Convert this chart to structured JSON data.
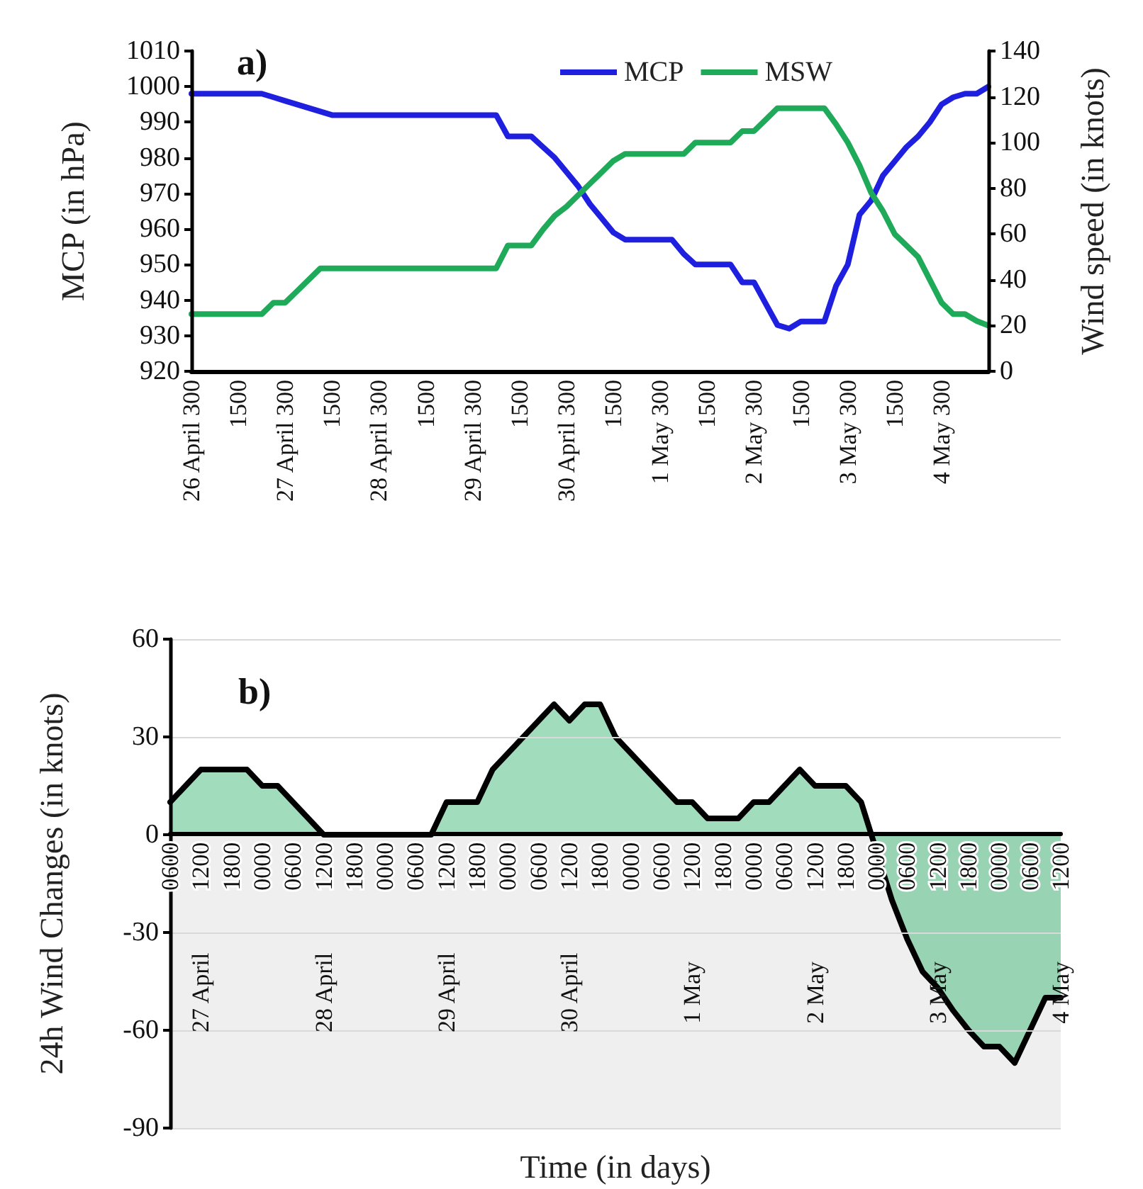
{
  "chart_data": [
    {
      "type": "line",
      "title": "a)",
      "ylabel": "MCP (in hPa)",
      "y2label": "Wind speed (in knots)",
      "categories": [
        "26 April 300",
        null,
        null,
        null,
        "1500",
        null,
        null,
        null,
        "27 April 300",
        null,
        null,
        null,
        "1500",
        null,
        null,
        null,
        "28 April 300",
        null,
        null,
        null,
        "1500",
        null,
        null,
        null,
        "29 April 300",
        null,
        null,
        null,
        "1500",
        null,
        null,
        null,
        "30 April 300",
        null,
        null,
        null,
        "1500",
        null,
        null,
        null,
        "1 May 300",
        null,
        null,
        null,
        "1500",
        null,
        null,
        null,
        "2 May 300",
        null,
        null,
        null,
        "1500",
        null,
        null,
        null,
        "3 May 300",
        null,
        null,
        null,
        "1500",
        null,
        null,
        null,
        "4 May 300",
        null,
        null,
        null,
        null
      ],
      "series": [
        {
          "name": "MCP",
          "color": "#1f1fe0",
          "values": [
            998,
            998,
            998,
            998,
            998,
            998,
            998,
            997,
            996,
            995,
            994,
            993,
            992,
            992,
            992,
            992,
            992,
            992,
            992,
            992,
            992,
            992,
            992,
            992,
            992,
            992,
            992,
            986,
            986,
            986,
            983,
            980,
            976,
            972,
            967,
            963,
            959,
            957,
            957,
            957,
            957,
            957,
            953,
            950,
            950,
            950,
            950,
            945,
            945,
            939,
            933,
            932,
            934,
            934,
            934,
            944,
            950,
            964,
            968,
            975,
            979,
            983,
            986,
            990,
            995,
            997,
            998,
            998,
            1000
          ]
        },
        {
          "name": "MSW",
          "color": "#1faa59",
          "axis": "y2",
          "values": [
            25,
            25,
            25,
            25,
            25,
            25,
            25,
            30,
            30,
            35,
            40,
            45,
            45,
            45,
            45,
            45,
            45,
            45,
            45,
            45,
            45,
            45,
            45,
            45,
            45,
            45,
            45,
            55,
            55,
            55,
            62,
            68,
            72,
            77,
            82,
            87,
            92,
            95,
            95,
            95,
            95,
            95,
            95,
            100,
            100,
            100,
            100,
            105,
            105,
            110,
            115,
            115,
            115,
            115,
            115,
            108,
            100,
            90,
            78,
            70,
            60,
            55,
            50,
            40,
            30,
            25,
            25,
            22,
            20
          ]
        }
      ],
      "ylim": [
        920,
        1010
      ],
      "yticks": [
        920,
        930,
        940,
        950,
        960,
        970,
        980,
        990,
        1000,
        1010
      ],
      "y2lim": [
        0,
        140
      ],
      "y2ticks": [
        0,
        20,
        40,
        60,
        80,
        100,
        120,
        140
      ],
      "legend": "top",
      "grid": false,
      "marker": "none"
    },
    {
      "type": "area",
      "title": "b)",
      "xlabel": "Time (in days)",
      "ylabel": "24h Wind Changes (in knots)",
      "categories": [
        "0600",
        null,
        "1200",
        null,
        "1800",
        null,
        "0000",
        null,
        "0600",
        null,
        "1200",
        null,
        "1800",
        null,
        "0000",
        null,
        "0600",
        null,
        "1200",
        null,
        "1800",
        null,
        "0000",
        null,
        "0600",
        null,
        "1200",
        null,
        "1800",
        null,
        "0000",
        null,
        "0600",
        null,
        "1200",
        null,
        "1800",
        null,
        "0000",
        null,
        "0600",
        null,
        "1200",
        null,
        "1800",
        null,
        "0000",
        null,
        "0600",
        null,
        "1200",
        null,
        "1800",
        null,
        "0000",
        null,
        "0600",
        null,
        "1200"
      ],
      "color": "#2fb36b",
      "values": [
        10,
        15,
        20,
        20,
        20,
        20,
        15,
        15,
        10,
        5,
        0,
        0,
        0,
        0,
        0,
        0,
        0,
        0,
        10,
        10,
        10,
        20,
        25,
        30,
        35,
        40,
        35,
        40,
        40,
        30,
        25,
        20,
        15,
        10,
        10,
        5,
        5,
        5,
        10,
        10,
        15,
        20,
        15,
        15,
        15,
        10,
        -5,
        -20,
        -32,
        -42,
        -47,
        -54,
        -60,
        -65,
        -65,
        -70,
        -60,
        -50,
        -50
      ],
      "ylim": [
        -90,
        60
      ],
      "yticks": [
        -90,
        -60,
        -30,
        0,
        30,
        60
      ],
      "grid": "y",
      "bands": [
        {
          "axis": "y",
          "from": -90,
          "to": 0,
          "color": "#efefef"
        }
      ],
      "annotations": [
        "27 April",
        "28 April",
        "29 April",
        "30 April",
        "1 May",
        "2 May",
        "3 May",
        "4 May"
      ],
      "marker": "none"
    }
  ]
}
